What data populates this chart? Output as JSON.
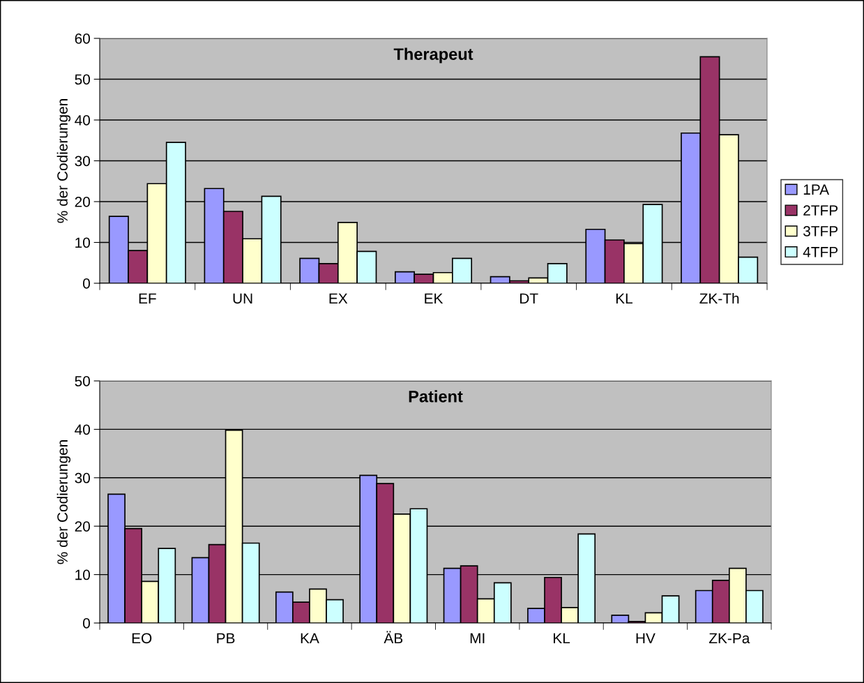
{
  "chart_data": [
    {
      "type": "bar",
      "title": "Therapeut",
      "ylabel": "% der Codierungen",
      "categories": [
        "EF",
        "UN",
        "EX",
        "EK",
        "DT",
        "KL",
        "ZK-Th"
      ],
      "ylim": [
        0,
        60
      ],
      "yticks": [
        0,
        10,
        20,
        30,
        40,
        50,
        60
      ],
      "grid": "y",
      "legend": "right",
      "series": [
        {
          "name": "1PA",
          "color": "#9999ff",
          "values": [
            16.4,
            23.2,
            6.1,
            2.8,
            1.6,
            13.2,
            36.8
          ]
        },
        {
          "name": "2TFP",
          "color": "#993366",
          "values": [
            8.0,
            17.6,
            4.8,
            2.2,
            0.6,
            10.6,
            55.5
          ]
        },
        {
          "name": "3TFP",
          "color": "#ffffcc",
          "values": [
            24.4,
            10.9,
            14.9,
            2.6,
            1.3,
            9.7,
            36.4
          ]
        },
        {
          "name": "4TFP",
          "color": "#ccffff",
          "values": [
            34.5,
            21.3,
            7.8,
            6.1,
            4.8,
            19.3,
            6.4
          ]
        }
      ]
    },
    {
      "type": "bar",
      "title": "Patient",
      "ylabel": "% der Codierungen",
      "categories": [
        "EO",
        "PB",
        "KA",
        "ÄB",
        "MI",
        "KL",
        "HV",
        "ZK-Pa"
      ],
      "ylim": [
        0,
        50
      ],
      "yticks": [
        0,
        10,
        20,
        30,
        40,
        50
      ],
      "grid": "y",
      "series": [
        {
          "color": "#9999ff",
          "values": [
            26.6,
            13.5,
            6.4,
            30.5,
            11.3,
            3.0,
            1.6,
            6.7
          ]
        },
        {
          "color": "#993366",
          "values": [
            19.5,
            16.2,
            4.3,
            28.8,
            11.8,
            9.4,
            0.3,
            8.8
          ]
        },
        {
          "color": "#ffffcc",
          "values": [
            8.6,
            39.8,
            7.0,
            22.5,
            5.0,
            3.2,
            2.1,
            11.3
          ]
        },
        {
          "color": "#ccffff",
          "values": [
            15.4,
            16.5,
            4.8,
            23.6,
            8.3,
            18.4,
            5.6,
            6.7
          ]
        }
      ]
    }
  ]
}
